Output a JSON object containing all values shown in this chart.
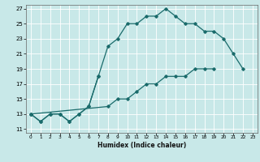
{
  "title": "",
  "xlabel": "Humidex (Indice chaleur)",
  "bg_color": "#c8e8e8",
  "grid_color": "#ffffff",
  "line_color": "#1a6b6b",
  "xlim": [
    -0.5,
    23.5
  ],
  "ylim": [
    10.5,
    27.5
  ],
  "xticks": [
    0,
    1,
    2,
    3,
    4,
    5,
    6,
    7,
    8,
    9,
    10,
    11,
    12,
    13,
    14,
    15,
    16,
    17,
    18,
    19,
    20,
    21,
    22,
    23
  ],
  "yticks": [
    11,
    13,
    15,
    17,
    19,
    21,
    23,
    25,
    27
  ],
  "line1_x": [
    0,
    1,
    2,
    3,
    4,
    5,
    6,
    7
  ],
  "line1_y": [
    13,
    12,
    13,
    13,
    12,
    13,
    14,
    18
  ],
  "line2_x": [
    0,
    1,
    2,
    3,
    4,
    5,
    6,
    7,
    8,
    9,
    10,
    11,
    12,
    13,
    14,
    15,
    16,
    17,
    18,
    19,
    20,
    21,
    22
  ],
  "line2_y": [
    13,
    12,
    13,
    13,
    12,
    13,
    14,
    18,
    22,
    23,
    25,
    25,
    26,
    26,
    27,
    26,
    25,
    25,
    24,
    24,
    23,
    21,
    19
  ],
  "line3_x": [
    0,
    8,
    9,
    10,
    11,
    12,
    13,
    14,
    15,
    16,
    17,
    18,
    19
  ],
  "line3_y": [
    13,
    14,
    15,
    15,
    16,
    17,
    17,
    18,
    18,
    18,
    19,
    19,
    19
  ]
}
